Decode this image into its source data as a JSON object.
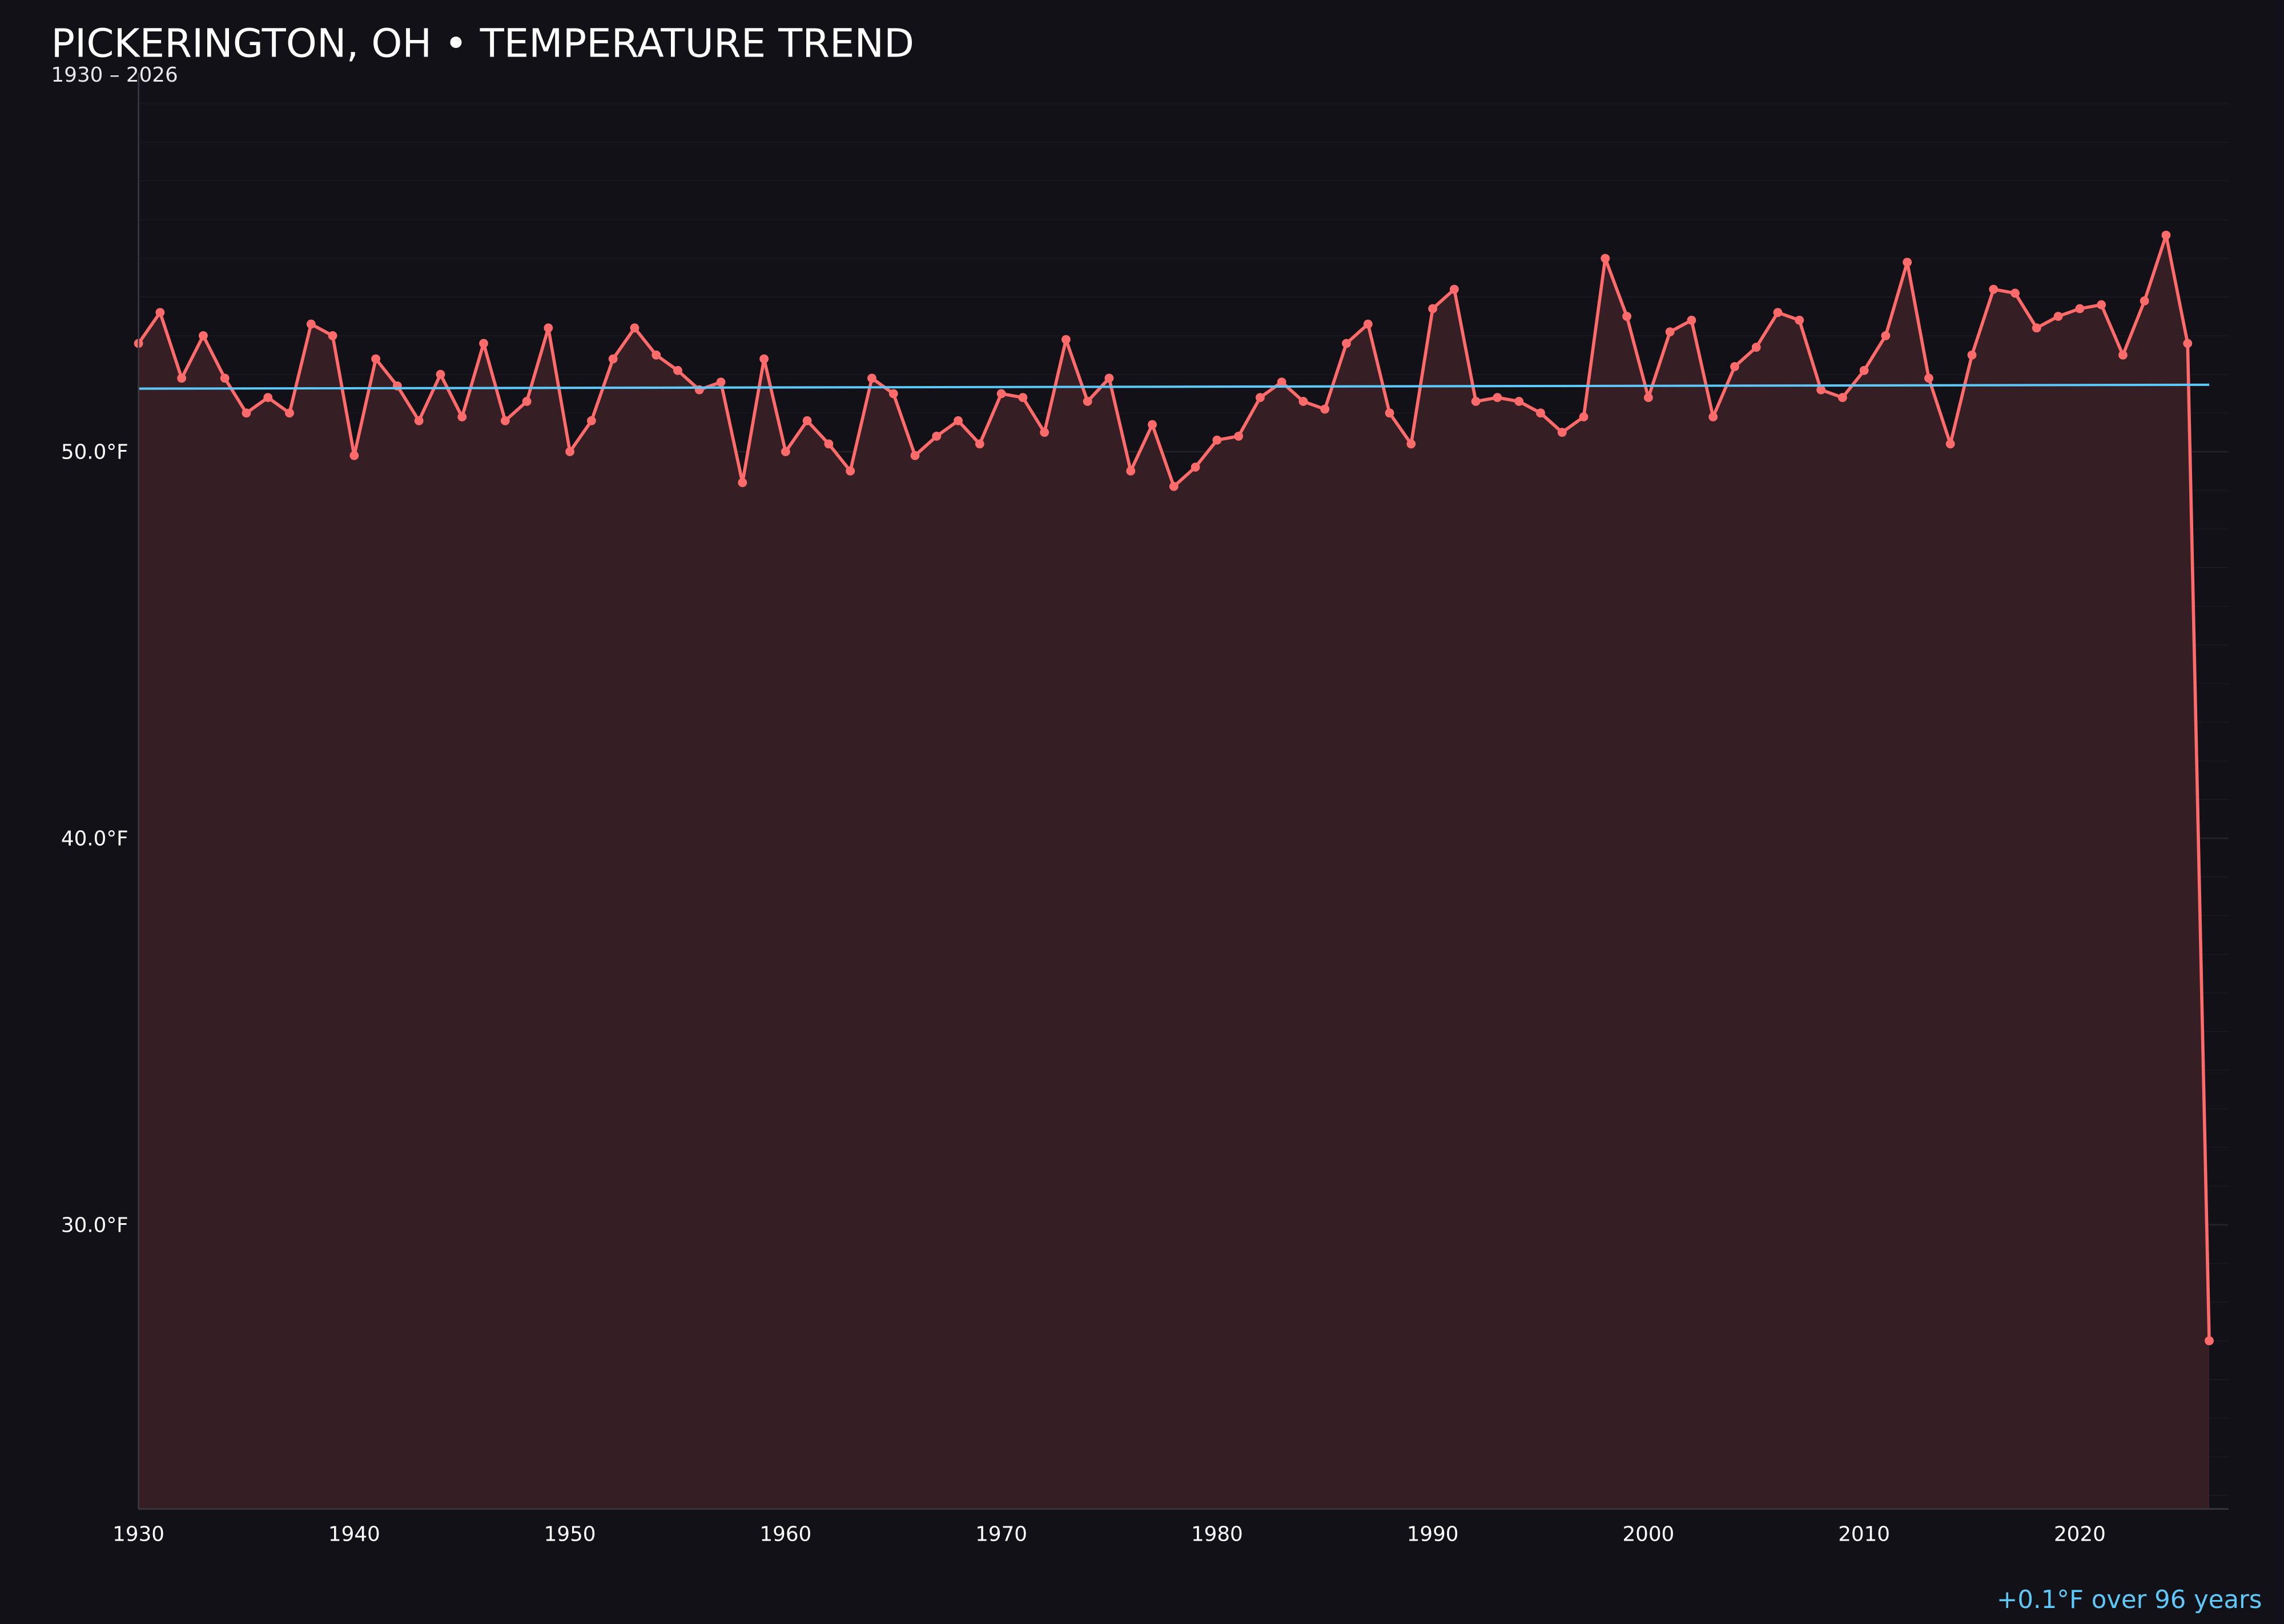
{
  "chart_data": {
    "type": "line",
    "title": "PICKERINGTON, OH • TEMPERATURE TREND",
    "subtitle": "1930 – 2026",
    "annotation": "+0.1°F over 96 years",
    "xlabel": "",
    "ylabel": "",
    "xlim": [
      1930,
      2027
    ],
    "ylim": [
      22.65,
      59.8
    ],
    "x_ticks": [
      1930,
      1940,
      1950,
      1960,
      1970,
      1980,
      1990,
      2000,
      2010,
      2020
    ],
    "x_tick_labels": [
      "1930",
      "1940",
      "1950",
      "1960",
      "1970",
      "1980",
      "1990",
      "2000",
      "2010",
      "2020"
    ],
    "y_ticks": [
      30,
      40,
      50
    ],
    "y_tick_labels": [
      "30.0°F",
      "40.0°F",
      "50.0°F"
    ],
    "grid": true,
    "series": [
      {
        "style": "line+markers+area",
        "x": [
          1930,
          1931,
          1932,
          1933,
          1934,
          1935,
          1936,
          1937,
          1938,
          1939,
          1940,
          1941,
          1942,
          1943,
          1944,
          1945,
          1946,
          1947,
          1948,
          1949,
          1950,
          1951,
          1952,
          1953,
          1954,
          1955,
          1956,
          1957,
          1958,
          1959,
          1960,
          1961,
          1962,
          1963,
          1964,
          1965,
          1966,
          1967,
          1968,
          1969,
          1970,
          1971,
          1972,
          1973,
          1974,
          1975,
          1976,
          1977,
          1978,
          1979,
          1980,
          1981,
          1982,
          1983,
          1984,
          1985,
          1986,
          1987,
          1988,
          1989,
          1990,
          1991,
          1992,
          1993,
          1994,
          1995,
          1996,
          1997,
          1998,
          1999,
          2000,
          2001,
          2002,
          2003,
          2004,
          2005,
          2006,
          2007,
          2008,
          2009,
          2010,
          2011,
          2012,
          2013,
          2014,
          2015,
          2016,
          2017,
          2018,
          2019,
          2020,
          2021,
          2022,
          2023,
          2024,
          2025,
          2026
        ],
        "y": [
          52.8,
          53.6,
          51.9,
          53.0,
          51.9,
          51.0,
          51.4,
          51.0,
          53.3,
          53.0,
          49.9,
          52.4,
          51.7,
          50.8,
          52.0,
          50.9,
          52.8,
          50.8,
          51.3,
          53.2,
          50.0,
          50.8,
          52.4,
          53.2,
          52.5,
          52.1,
          51.6,
          51.8,
          49.2,
          52.4,
          50.0,
          50.8,
          50.2,
          49.5,
          51.9,
          51.5,
          49.9,
          50.4,
          50.8,
          50.2,
          51.5,
          51.4,
          50.5,
          52.9,
          51.3,
          51.9,
          49.5,
          50.7,
          49.1,
          49.6,
          50.3,
          50.4,
          51.4,
          51.8,
          51.3,
          51.1,
          52.8,
          53.3,
          51.0,
          50.2,
          53.7,
          54.2,
          51.3,
          51.4,
          51.3,
          51.0,
          50.5,
          50.9,
          55.0,
          53.5,
          51.4,
          53.1,
          53.4,
          50.9,
          52.2,
          52.7,
          53.6,
          53.4,
          51.6,
          51.4,
          52.1,
          53.0,
          54.9,
          51.9,
          50.2,
          52.5,
          54.2,
          54.1,
          53.2,
          53.5,
          53.7,
          53.8,
          52.5,
          53.9,
          55.6,
          52.8,
          27.0
        ]
      },
      {
        "style": "trend-line",
        "x": [
          1930,
          2026
        ],
        "y": [
          51.63,
          51.73
        ]
      }
    ]
  },
  "colors": {
    "background": "#121118",
    "series": "#ff6b6b",
    "area": "#351f25",
    "trend": "#5ec8f8",
    "text": "#ffffff",
    "annotation": "#5ec8f8",
    "grid": "#2a2228",
    "axis": "#3a3840"
  }
}
